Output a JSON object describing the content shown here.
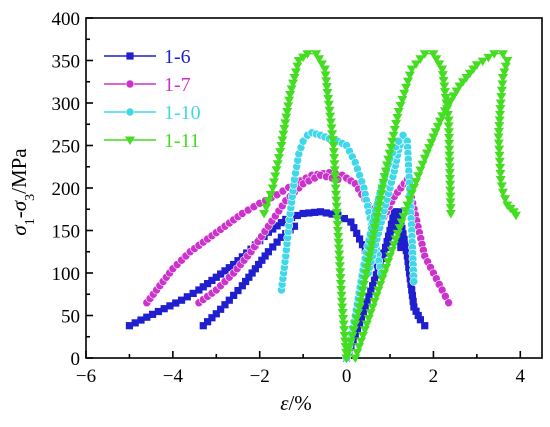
{
  "chart_data": {
    "type": "line",
    "xlabel_main": "ε",
    "xlabel_unit": "/%",
    "ylabel_parts": {
      "sigma1": "σ",
      "sub1": "1",
      "dash": "-",
      "sigma3": "σ",
      "sub3": "3",
      "unit": "/MPa"
    },
    "xlim": [
      -6,
      4.5
    ],
    "ylim": [
      0,
      400
    ],
    "xticks": [
      -6,
      -4,
      -2,
      0,
      2,
      4
    ],
    "yticks": [
      0,
      50,
      100,
      150,
      200,
      250,
      300,
      350,
      400
    ],
    "legend_position": "top-left",
    "series": [
      {
        "name": "1-6",
        "color": "#1f1fd0",
        "marker": "square",
        "parts": [
          {
            "x": [
              0.0,
              0.3,
              0.6,
              0.9,
              1.2,
              1.4,
              1.5,
              1.55,
              1.6,
              1.7,
              1.8
            ],
            "y": [
              0,
              40,
              85,
              130,
              172,
              120,
              80,
              60,
              55,
              45,
              38
            ]
          },
          {
            "x": [
              -5.0,
              -4.6,
              -4.2,
              -3.8,
              -3.4,
              -3.0,
              -2.6,
              -2.2,
              -1.8,
              -1.4,
              -1.0,
              -0.6,
              -0.2,
              0.1,
              0.3,
              0.5,
              0.7,
              0.9,
              1.0,
              1.1,
              1.2,
              1.25
            ],
            "y": [
              38,
              48,
              58,
              68,
              80,
              95,
              110,
              128,
              148,
              163,
              170,
              172,
              168,
              160,
              140,
              120,
              110,
              130,
              150,
              172,
              160,
              130
            ]
          },
          {
            "x": [
              -3.3,
              -3.0,
              -2.7,
              -2.4,
              -2.1,
              -1.8,
              -1.5,
              -1.2
            ],
            "y": [
              38,
              52,
              68,
              85,
              105,
              125,
              142,
              155
            ]
          }
        ]
      },
      {
        "name": "1-7",
        "color": "#cc33cc",
        "marker": "circle",
        "parts": [
          {
            "x": [
              -4.6,
              -4.3,
              -4.0,
              -3.6,
              -3.2,
              -2.8,
              -2.4,
              -2.0,
              -1.6,
              -1.2,
              -0.8,
              -0.4,
              -0.1,
              0.2,
              0.5,
              0.8,
              1.1,
              1.4,
              1.8,
              2.2,
              2.35
            ],
            "y": [
              65,
              85,
              105,
              125,
              140,
              155,
              170,
              182,
              192,
              205,
              215,
              218,
              215,
              205,
              180,
              160,
              190,
              210,
              120,
              80,
              65
            ]
          },
          {
            "x": [
              -3.4,
              -3.0,
              -2.6,
              -2.2,
              -1.8,
              -1.4,
              -1.0,
              -0.6,
              -0.2
            ],
            "y": [
              65,
              80,
              100,
              125,
              155,
              185,
              205,
              215,
              210
            ]
          }
        ]
      },
      {
        "name": "1-10",
        "color": "#40d8e8",
        "marker": "circle",
        "parts": [
          {
            "x": [
              -1.5,
              -1.4,
              -1.3,
              -1.2,
              -1.1,
              -1.0,
              -0.9,
              -0.8,
              -0.6,
              -0.4,
              -0.2,
              0.0,
              0.2,
              0.4,
              0.6,
              0.8
            ],
            "y": [
              80,
              120,
              170,
              210,
              240,
              255,
              262,
              265,
              262,
              258,
              255,
              250,
              230,
              200,
              150,
              100
            ]
          },
          {
            "x": [
              0.5,
              0.7,
              0.9,
              1.1,
              1.2,
              1.3,
              1.4,
              1.5,
              1.55
            ],
            "y": [
              100,
              140,
              180,
              220,
              245,
              262,
              255,
              150,
              90
            ]
          },
          {
            "x": [
              0.0,
              0.2,
              0.4,
              0.6,
              0.8,
              1.0,
              1.2
            ],
            "y": [
              0,
              50,
              110,
              160,
              200,
              235,
              255
            ]
          }
        ]
      },
      {
        "name": "1-11",
        "color": "#44dd22",
        "marker": "triangle-down",
        "parts": [
          {
            "x": [
              -1.9,
              -1.7,
              -1.5,
              -1.3,
              -1.1,
              -0.9,
              -0.7,
              -0.5,
              -0.3,
              -0.2,
              -0.1,
              0.0
            ],
            "y": [
              170,
              200,
              250,
              310,
              350,
              358,
              358,
              340,
              250,
              150,
              60,
              0
            ]
          },
          {
            "x": [
              0.0,
              0.3,
              0.6,
              0.9,
              1.2,
              1.5,
              1.8,
              2.0,
              2.2,
              2.35,
              2.4
            ],
            "y": [
              0,
              60,
              140,
              220,
              290,
              340,
              358,
              358,
              340,
              280,
              170
            ]
          },
          {
            "x": [
              0.2,
              0.6,
              1.0,
              1.4,
              1.8,
              2.2,
              2.6,
              3.0,
              3.4,
              3.6,
              3.7
            ],
            "y": [
              0,
              60,
              120,
              180,
              235,
              285,
              320,
              345,
              358,
              358,
              350
            ]
          },
          {
            "x": [
              3.7,
              3.6,
              3.55,
              3.5,
              3.55,
              3.6,
              3.7,
              3.85,
              3.9
            ],
            "y": [
              350,
              330,
              300,
              260,
              210,
              195,
              180,
              172,
              168
            ]
          }
        ]
      }
    ]
  }
}
